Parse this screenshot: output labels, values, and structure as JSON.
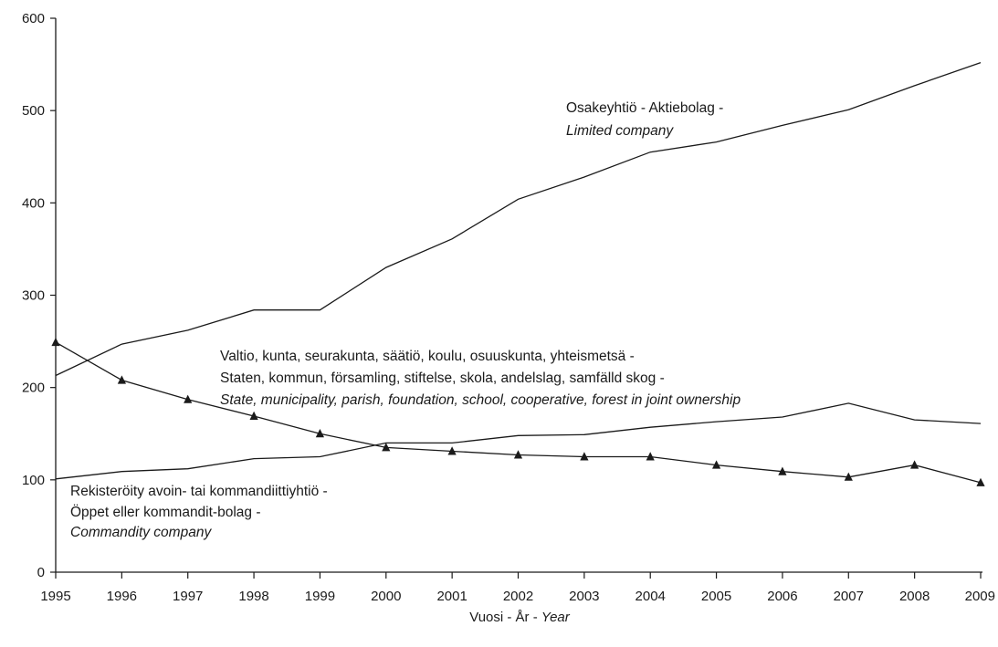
{
  "chart_data": {
    "type": "line",
    "title": "",
    "xlabel": {
      "part1": "Vuosi - År - ",
      "part2": "Year"
    },
    "ylabel": "",
    "x": [
      1995,
      1996,
      1997,
      1998,
      1999,
      2000,
      2001,
      2002,
      2003,
      2004,
      2005,
      2006,
      2007,
      2008,
      2009
    ],
    "xlim": [
      1995,
      2009
    ],
    "ylim": [
      0,
      600
    ],
    "yticks": [
      0,
      100,
      200,
      300,
      400,
      500,
      600
    ],
    "grid": false,
    "legend": "none (series labelled by annotations)",
    "series": [
      {
        "key": "limited",
        "marker": "none",
        "values": [
          213,
          247,
          262,
          284,
          284,
          330,
          361,
          404,
          428,
          455,
          466,
          484,
          501,
          527,
          552
        ]
      },
      {
        "key": "state",
        "marker": "none",
        "values": [
          101,
          109,
          112,
          123,
          125,
          140,
          140,
          148,
          149,
          157,
          163,
          168,
          183,
          165,
          161
        ]
      },
      {
        "key": "commandity",
        "marker": "triangle",
        "values": [
          249,
          208,
          187,
          169,
          150,
          135,
          131,
          127,
          125,
          125,
          116,
          109,
          103,
          116,
          97
        ]
      }
    ],
    "annotations": [
      {
        "key": "limited",
        "lines": [
          "Osakeyhtiö - Aktiebolag -",
          "Limited company"
        ]
      },
      {
        "key": "state",
        "lines": [
          "Valtio, kunta, seurakunta, säätiö, koulu, osuuskunta, yhteismetsä -",
          "Staten, kommun, församling, stiftelse, skola, andelslag, samfälld skog -",
          "State, municipality, parish, foundation, school, cooperative, forest in joint ownership"
        ]
      },
      {
        "key": "commandity",
        "lines": [
          "Rekisteröity avoin- tai kommandiittiyhtiö -",
          "Öppet eller kommandit-bolag -",
          "Commandity company"
        ]
      }
    ]
  }
}
